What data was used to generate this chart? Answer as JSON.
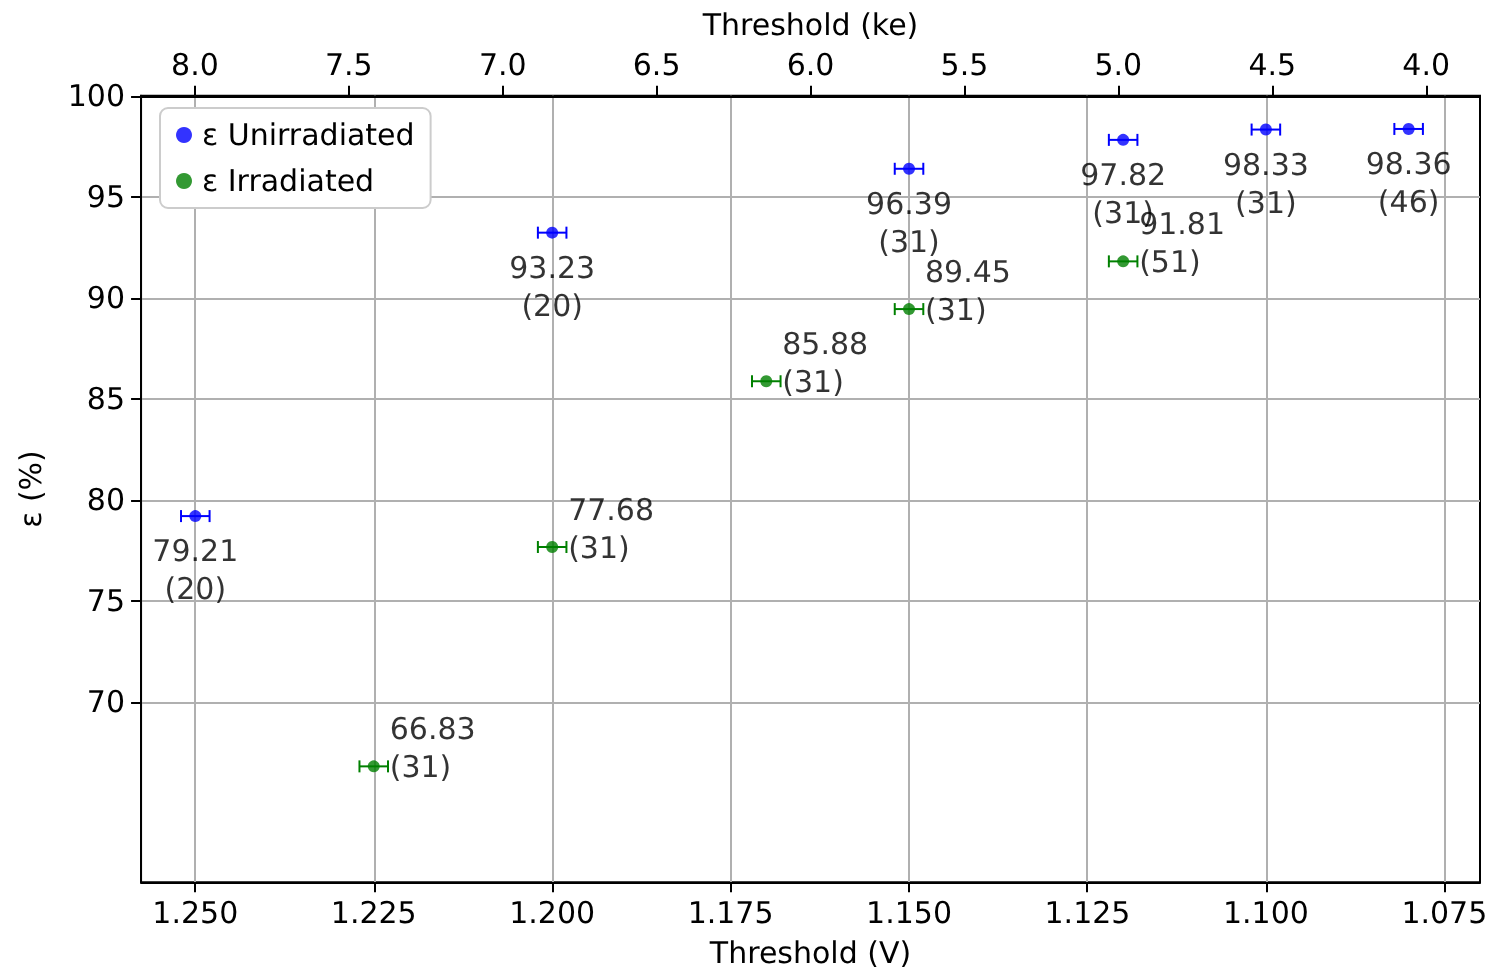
{
  "chart_data": {
    "type": "scatter",
    "xlabel": "Threshold (V)",
    "x2label": "Threshold (ke)",
    "ylabel": "ε (%)",
    "xlim": [
      1.2576,
      1.07
    ],
    "xticks": [
      {
        "value": 1.25,
        "label": "1.250"
      },
      {
        "value": 1.225,
        "label": "1.225"
      },
      {
        "value": 1.2,
        "label": "1.200"
      },
      {
        "value": 1.175,
        "label": "1.175"
      },
      {
        "value": 1.15,
        "label": "1.150"
      },
      {
        "value": 1.125,
        "label": "1.125"
      },
      {
        "value": 1.1,
        "label": "1.100"
      },
      {
        "value": 1.075,
        "label": "1.075"
      }
    ],
    "x2lim": [
      8.175,
      3.825
    ],
    "x2ticks": [
      {
        "value": 8,
        "label": "8.0"
      },
      {
        "value": 7.5,
        "label": "7.5"
      },
      {
        "value": 7,
        "label": "7.0"
      },
      {
        "value": 6.5,
        "label": "6.5"
      },
      {
        "value": 6,
        "label": "6.0"
      },
      {
        "value": 5.5,
        "label": "5.5"
      },
      {
        "value": 5,
        "label": "5.0"
      },
      {
        "value": 4.5,
        "label": "4.5"
      },
      {
        "value": 4,
        "label": "4.0"
      }
    ],
    "ylim": [
      61.1,
      100
    ],
    "yticks": [
      70,
      75,
      80,
      85,
      90,
      95,
      100
    ],
    "grid": true,
    "legend": "top left",
    "marker": "circle",
    "series": [
      {
        "name": "ε Unirradiated",
        "color": "#0000ff",
        "x": [
          1.25,
          1.2,
          1.15,
          1.12,
          1.1,
          1.08
        ],
        "values": [
          79.21,
          93.23,
          96.39,
          97.82,
          98.33,
          98.36
        ],
        "xerrors": [
          0.002,
          0.002,
          0.002,
          0.002,
          0.002,
          0.002
        ],
        "value_labels": [
          "79.21\n(20)",
          "93.23\n(20)",
          "96.39\n(31)",
          "97.82\n(31)",
          "98.33\n(31)",
          "98.36\n(46)"
        ]
      },
      {
        "name": "ε Irradiated",
        "color": "#008000",
        "x": [
          1.225,
          1.2,
          1.17,
          1.15,
          1.12
        ],
        "values": [
          66.83,
          77.68,
          85.88,
          89.45,
          91.81
        ],
        "xerrors": [
          0.002,
          0.002,
          0.002,
          0.002,
          0.002
        ],
        "value_labels": [
          "66.83\n(31)",
          "77.68\n(31)",
          "85.88\n(31)",
          "89.45\n(31)",
          "91.81\n(51)"
        ]
      }
    ]
  }
}
